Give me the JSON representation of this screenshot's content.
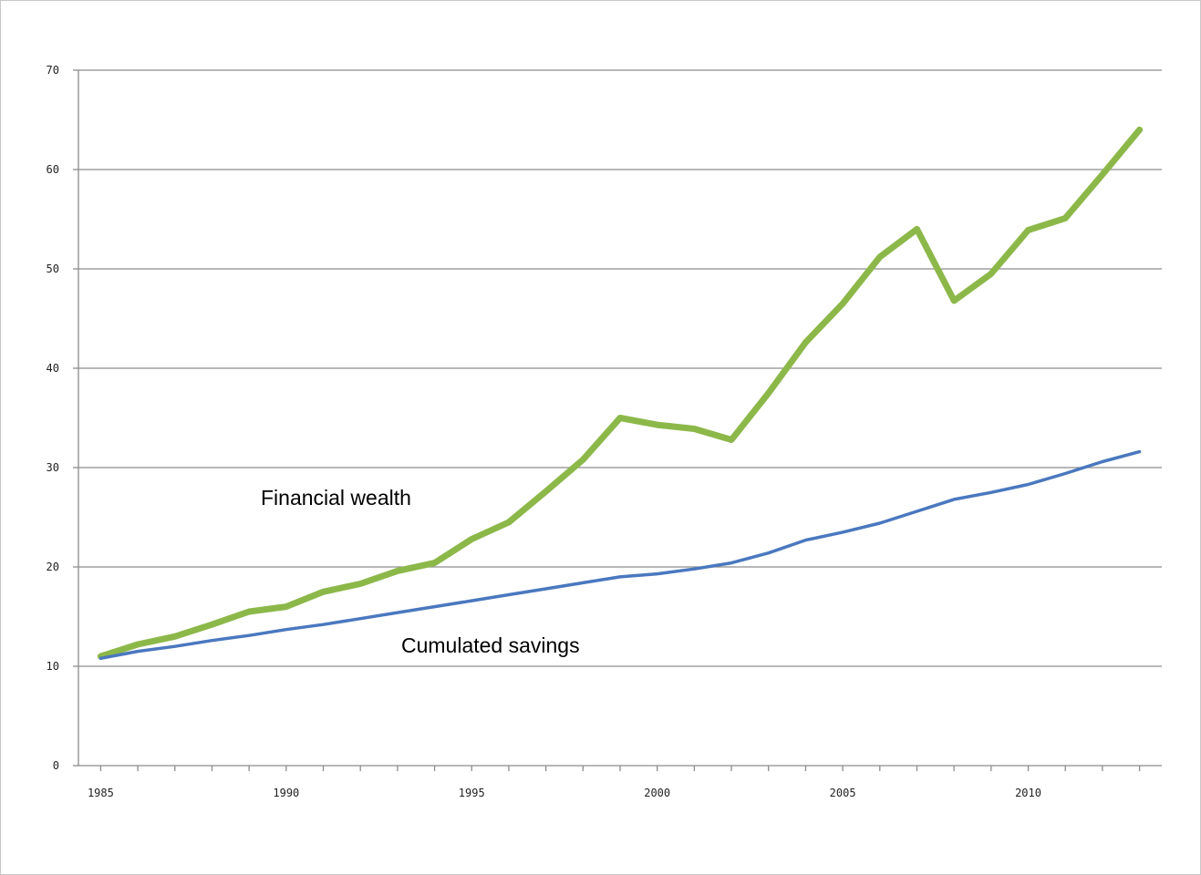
{
  "chart_data": {
    "type": "line",
    "title": "",
    "xlabel": "",
    "ylabel": "",
    "xlim": [
      1984.4,
      2013.6
    ],
    "ylim": [
      0,
      70
    ],
    "grid": "horizontal",
    "legend": "none",
    "x_ticks": [
      "1985",
      "1990",
      "1995",
      "2000",
      "2005",
      "2010"
    ],
    "y_ticks": [
      "0",
      "10",
      "20",
      "30",
      "40",
      "50",
      "60",
      "70"
    ],
    "x": [
      1985,
      1986,
      1987,
      1988,
      1989,
      1990,
      1991,
      1992,
      1993,
      1994,
      1995,
      1996,
      1997,
      1998,
      1999,
      2000,
      2001,
      2002,
      2003,
      2004,
      2005,
      2006,
      2007,
      2008,
      2009,
      2010,
      2011,
      2012,
      2013
    ],
    "series": [
      {
        "label": "Financial wealth",
        "color": "#8cb84a",
        "values": [
          11.0,
          12.2,
          13.0,
          14.2,
          15.5,
          16.0,
          17.5,
          18.3,
          19.6,
          20.4,
          22.8,
          24.5,
          27.6,
          30.8,
          35.0,
          34.3,
          33.9,
          32.8,
          37.5,
          42.6,
          46.5,
          51.2,
          54.0,
          46.8,
          49.5,
          53.9,
          55.1,
          59.5,
          64.0
        ]
      },
      {
        "label": "Cumulated savings",
        "color": "#4a78bf",
        "values": [
          10.8,
          11.5,
          12.0,
          12.6,
          13.1,
          13.7,
          14.2,
          14.8,
          15.4,
          16.0,
          16.6,
          17.2,
          17.8,
          18.4,
          19.0,
          19.3,
          19.8,
          20.4,
          21.4,
          22.7,
          23.5,
          24.4,
          25.6,
          26.8,
          27.5,
          28.3,
          29.4,
          30.6,
          31.6
        ]
      }
    ],
    "annotations": [
      "Financial wealth",
      "Cumulated savings"
    ]
  }
}
